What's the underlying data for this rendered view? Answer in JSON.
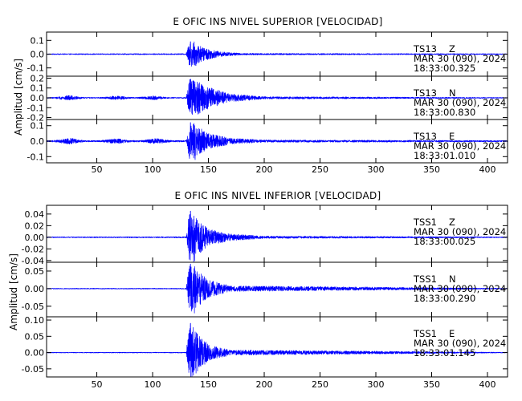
{
  "chart_data": [
    {
      "type": "line",
      "title": "E OFIC INS NIVEL SUPERIOR [VELOCIDAD]",
      "ylabel": "Amplitud [cm/s]",
      "xlim": [
        5,
        418
      ],
      "xticks": [
        50,
        100,
        150,
        200,
        250,
        300,
        350,
        400
      ],
      "color": "#0000ff",
      "grid": false,
      "panels": [
        {
          "station": "TS13",
          "channel": "Z",
          "date": "MAR 30 (090), 2024",
          "time": "18:33:00.325",
          "ylim": [
            -0.16,
            0.16
          ],
          "yticks": [
            0.1,
            0.0,
            -0.1
          ],
          "ytick_labels": [
            "0.1",
            "0.0",
            "-0.1"
          ],
          "noise": 0.003,
          "bursts": [],
          "onset": 133,
          "peak_time": 134,
          "peak": 0.09,
          "decay": 9,
          "envelope": [
            [
              5,
              0.003
            ],
            [
              130,
              0.004
            ],
            [
              133,
              0.09
            ],
            [
              136,
              0.09
            ],
            [
              145,
              0.05
            ],
            [
              160,
              0.018
            ],
            [
              180,
              0.006
            ],
            [
              418,
              0.003
            ]
          ]
        },
        {
          "station": "TS13",
          "channel": "N",
          "date": "MAR 30 (090), 2024",
          "time": "18:33:00.830",
          "ylim": [
            -0.22,
            0.22
          ],
          "yticks": [
            0.2,
            0.1,
            0.0,
            -0.1,
            -0.2
          ],
          "ytick_labels": [
            "0.2",
            "0.1",
            "0.0",
            "-0.1",
            "-0.2"
          ],
          "noise": 0.004,
          "bursts": [
            [
              25,
              0.02
            ],
            [
              68,
              0.015
            ],
            [
              100,
              0.015
            ]
          ],
          "onset": 133,
          "peak_time": 134,
          "peak": 0.19,
          "decay": 10,
          "envelope": [
            [
              5,
              0.004
            ],
            [
              130,
              0.005
            ],
            [
              133,
              0.19
            ],
            [
              137,
              0.19
            ],
            [
              150,
              0.11
            ],
            [
              170,
              0.04
            ],
            [
              200,
              0.012
            ],
            [
              418,
              0.004
            ]
          ]
        },
        {
          "station": "TS13",
          "channel": "E",
          "date": "MAR 30 (090), 2024",
          "time": "18:33:01.010",
          "ylim": [
            -0.14,
            0.14
          ],
          "yticks": [
            0.1,
            0.0,
            -0.1
          ],
          "ytick_labels": [
            "0.1",
            "0.0",
            "-0.1"
          ],
          "noise": 0.004,
          "bursts": [
            [
              25,
              0.015
            ],
            [
              67,
              0.012
            ],
            [
              103,
              0.012
            ]
          ],
          "onset": 133,
          "peak_time": 134,
          "peak": 0.12,
          "decay": 10,
          "envelope": [
            [
              5,
              0.004
            ],
            [
              130,
              0.005
            ],
            [
              133,
              0.12
            ],
            [
              137,
              0.11
            ],
            [
              150,
              0.05
            ],
            [
              170,
              0.02
            ],
            [
              200,
              0.008
            ],
            [
              418,
              0.004
            ]
          ]
        }
      ]
    },
    {
      "type": "line",
      "title": "E OFIC INS NIVEL INFERIOR [VELOCIDAD]",
      "ylabel": "Amplitud [cm/s]",
      "xlim": [
        5,
        418
      ],
      "xticks": [
        50,
        100,
        150,
        200,
        250,
        300,
        350,
        400
      ],
      "color": "#0000ff",
      "grid": false,
      "panels": [
        {
          "station": "TSS1",
          "channel": "Z",
          "date": "MAR 30 (090), 2024",
          "time": "18:33:00.025",
          "ylim": [
            -0.043,
            0.055
          ],
          "yticks": [
            0.04,
            0.02,
            0.0,
            -0.02,
            -0.04
          ],
          "ytick_labels": [
            "0.04",
            "0.02",
            "0.00",
            "-0.02",
            "-0.04"
          ],
          "noise": 0.0008,
          "bursts": [],
          "onset": 133,
          "peak_time": 134,
          "peak": 0.045,
          "decay": 12,
          "envelope": [
            [
              5,
              0.0008
            ],
            [
              130,
              0.001
            ],
            [
              133,
              0.045
            ],
            [
              138,
              0.035
            ],
            [
              150,
              0.014
            ],
            [
              170,
              0.006
            ],
            [
              200,
              0.002
            ],
            [
              418,
              0.0008
            ]
          ]
        },
        {
          "station": "TSS1",
          "channel": "N",
          "date": "MAR 30 (090), 2024",
          "time": "18:33:00.290",
          "ylim": [
            -0.08,
            0.075
          ],
          "yticks": [
            0.05,
            0.0,
            -0.05
          ],
          "ytick_labels": [
            "0.05",
            "0.00",
            "-0.05"
          ],
          "noise": 0.001,
          "bursts": [],
          "onset": 133,
          "peak_time": 134,
          "peak": 0.07,
          "decay": 10,
          "envelope": [
            [
              5,
              0.001
            ],
            [
              130,
              0.0012
            ],
            [
              133,
              0.07
            ],
            [
              137,
              0.06
            ],
            [
              150,
              0.025
            ],
            [
              170,
              0.008
            ],
            [
              418,
              0.001
            ]
          ]
        },
        {
          "station": "TSS1",
          "channel": "E",
          "date": "MAR 30 (090), 2024",
          "time": "18:33:01.145",
          "ylim": [
            -0.075,
            0.11
          ],
          "yticks": [
            0.1,
            0.05,
            0.0,
            -0.05
          ],
          "ytick_labels": [
            "0.10",
            "0.05",
            "0.00",
            "-0.05"
          ],
          "noise": 0.001,
          "bursts": [],
          "onset": 133,
          "peak_time": 134,
          "peak": 0.09,
          "decay": 10,
          "envelope": [
            [
              5,
              0.001
            ],
            [
              130,
              0.0012
            ],
            [
              133,
              0.09
            ],
            [
              137,
              0.07
            ],
            [
              150,
              0.025
            ],
            [
              170,
              0.008
            ],
            [
              418,
              0.001
            ]
          ]
        }
      ]
    }
  ]
}
